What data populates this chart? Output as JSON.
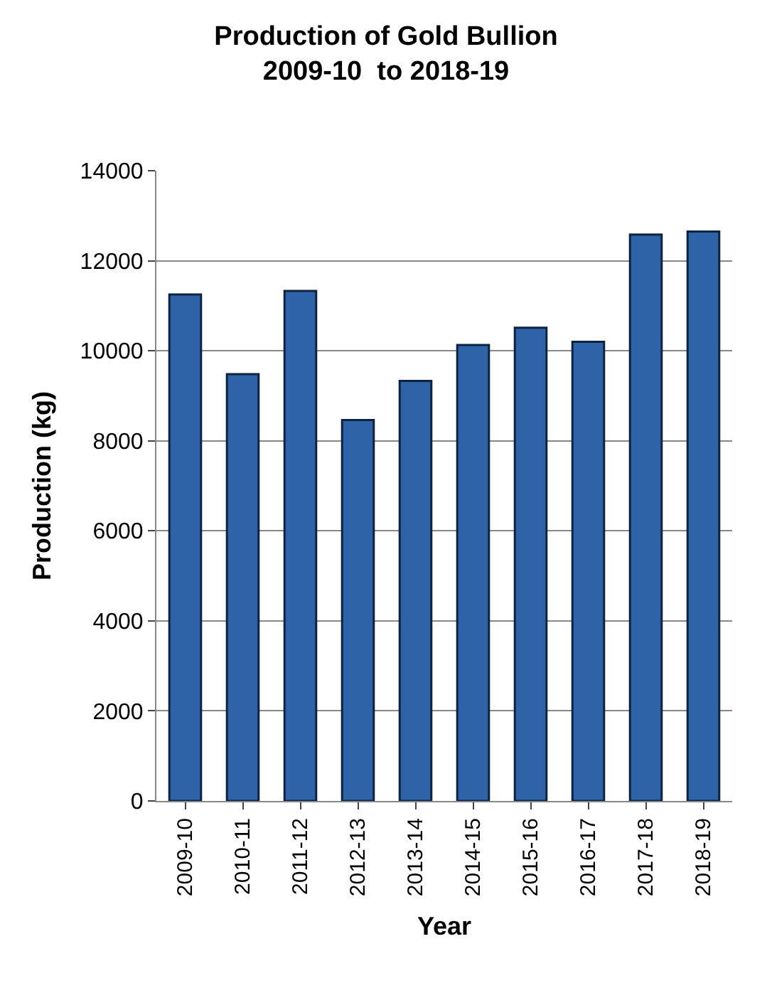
{
  "chart_data": {
    "type": "bar",
    "title": "Production of Gold Bullion\n2009-10  to 2018-19",
    "xlabel": "Year",
    "ylabel": "Production (kg)",
    "categories": [
      "2009-10",
      "2010-11",
      "2011-12",
      "2012-13",
      "2013-14",
      "2014-15",
      "2015-16",
      "2016-17",
      "2017-18",
      "2018-19"
    ],
    "values": [
      11250,
      9480,
      11330,
      8460,
      9330,
      10130,
      10510,
      10200,
      12580,
      12650
    ],
    "color": "#2e63a8",
    "ylim": [
      0,
      14000
    ],
    "yticks": [
      0,
      2000,
      4000,
      6000,
      8000,
      10000,
      12000,
      14000
    ],
    "grid": "y",
    "legend": false
  }
}
